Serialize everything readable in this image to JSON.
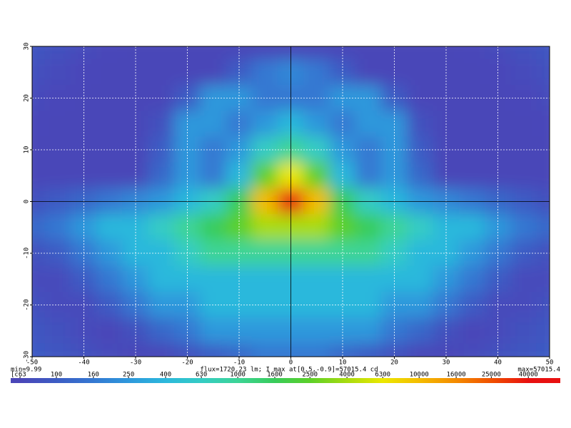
{
  "chart_data": {
    "type": "heatmap",
    "x": [
      -50,
      -45,
      -40,
      -35,
      -30,
      -25,
      -20,
      -15,
      -10,
      -5,
      0,
      5,
      10,
      15,
      20,
      25,
      30,
      35,
      40,
      45,
      50
    ],
    "y": [
      30,
      25,
      20,
      15,
      10,
      5,
      0,
      -5,
      -10,
      -15,
      -20,
      -25,
      -30
    ],
    "z": [
      [
        90,
        80,
        70,
        65,
        60,
        60,
        60,
        60,
        60,
        60,
        60,
        60,
        60,
        60,
        60,
        60,
        60,
        65,
        70,
        80,
        90
      ],
      [
        80,
        70,
        65,
        60,
        60,
        60,
        60,
        60,
        100,
        160,
        200,
        160,
        100,
        60,
        60,
        60,
        60,
        60,
        65,
        70,
        80
      ],
      [
        70,
        65,
        60,
        60,
        60,
        60,
        100,
        250,
        250,
        160,
        160,
        160,
        250,
        250,
        100,
        60,
        60,
        60,
        60,
        65,
        70
      ],
      [
        65,
        60,
        60,
        60,
        60,
        80,
        250,
        250,
        160,
        250,
        400,
        250,
        160,
        250,
        250,
        80,
        60,
        60,
        60,
        60,
        65
      ],
      [
        60,
        60,
        60,
        60,
        60,
        100,
        250,
        160,
        250,
        630,
        1000,
        630,
        250,
        160,
        250,
        100,
        60,
        60,
        60,
        60,
        60
      ],
      [
        60,
        60,
        60,
        60,
        60,
        120,
        250,
        160,
        400,
        2500,
        6300,
        2500,
        400,
        160,
        250,
        120,
        60,
        60,
        60,
        60,
        60
      ],
      [
        80,
        100,
        120,
        160,
        200,
        250,
        400,
        630,
        1600,
        10000,
        40000,
        10000,
        1600,
        630,
        400,
        250,
        200,
        160,
        120,
        100,
        80
      ],
      [
        120,
        160,
        250,
        400,
        400,
        630,
        1000,
        1600,
        2500,
        4000,
        4000,
        4000,
        2500,
        1600,
        1000,
        630,
        400,
        400,
        250,
        160,
        120
      ],
      [
        80,
        100,
        160,
        250,
        400,
        400,
        630,
        1000,
        1000,
        1000,
        1000,
        1000,
        1000,
        1000,
        630,
        400,
        400,
        250,
        160,
        100,
        80
      ],
      [
        70,
        70,
        100,
        160,
        250,
        400,
        400,
        400,
        400,
        400,
        400,
        400,
        400,
        400,
        400,
        400,
        250,
        160,
        100,
        70,
        70
      ],
      [
        80,
        70,
        70,
        100,
        160,
        250,
        250,
        400,
        400,
        400,
        400,
        400,
        400,
        400,
        250,
        250,
        160,
        100,
        70,
        70,
        80
      ],
      [
        90,
        80,
        70,
        60,
        80,
        120,
        160,
        250,
        250,
        250,
        250,
        250,
        250,
        250,
        160,
        120,
        80,
        60,
        70,
        80,
        90
      ],
      [
        100,
        90,
        80,
        70,
        60,
        60,
        80,
        100,
        120,
        160,
        160,
        160,
        120,
        100,
        80,
        60,
        60,
        70,
        80,
        90,
        100
      ]
    ],
    "xlim": [
      -50,
      50
    ],
    "ylim": [
      -30,
      30
    ],
    "xticks": [
      -50,
      -40,
      -30,
      -20,
      -10,
      0,
      10,
      20,
      30,
      40,
      50
    ],
    "yticks": [
      -30,
      -20,
      -10,
      0,
      10,
      20,
      30
    ],
    "grid": true,
    "min_label": "min=9.99",
    "info_label": "flux=1720.23 lm; I max at[0.5,-0.9]=57015.4 cd",
    "max_label": "max=57015.4",
    "clim": [
      56,
      60000
    ],
    "clog": true,
    "cticks": [
      {
        "value": 63,
        "label": "[c63"
      },
      100,
      160,
      250,
      400,
      630,
      1000,
      1600,
      2500,
      4000,
      6300,
      10000,
      16000,
      25000,
      40000
    ],
    "colors": [
      "#4a46b8",
      "#3c5cc4",
      "#3478d2",
      "#2e98dc",
      "#2cb8dc",
      "#34ccc4",
      "#3cd496",
      "#38cc5a",
      "#5cd028",
      "#a8dc10",
      "#ece800",
      "#f4bc00",
      "#f48a00",
      "#f05000",
      "#e81010"
    ]
  }
}
